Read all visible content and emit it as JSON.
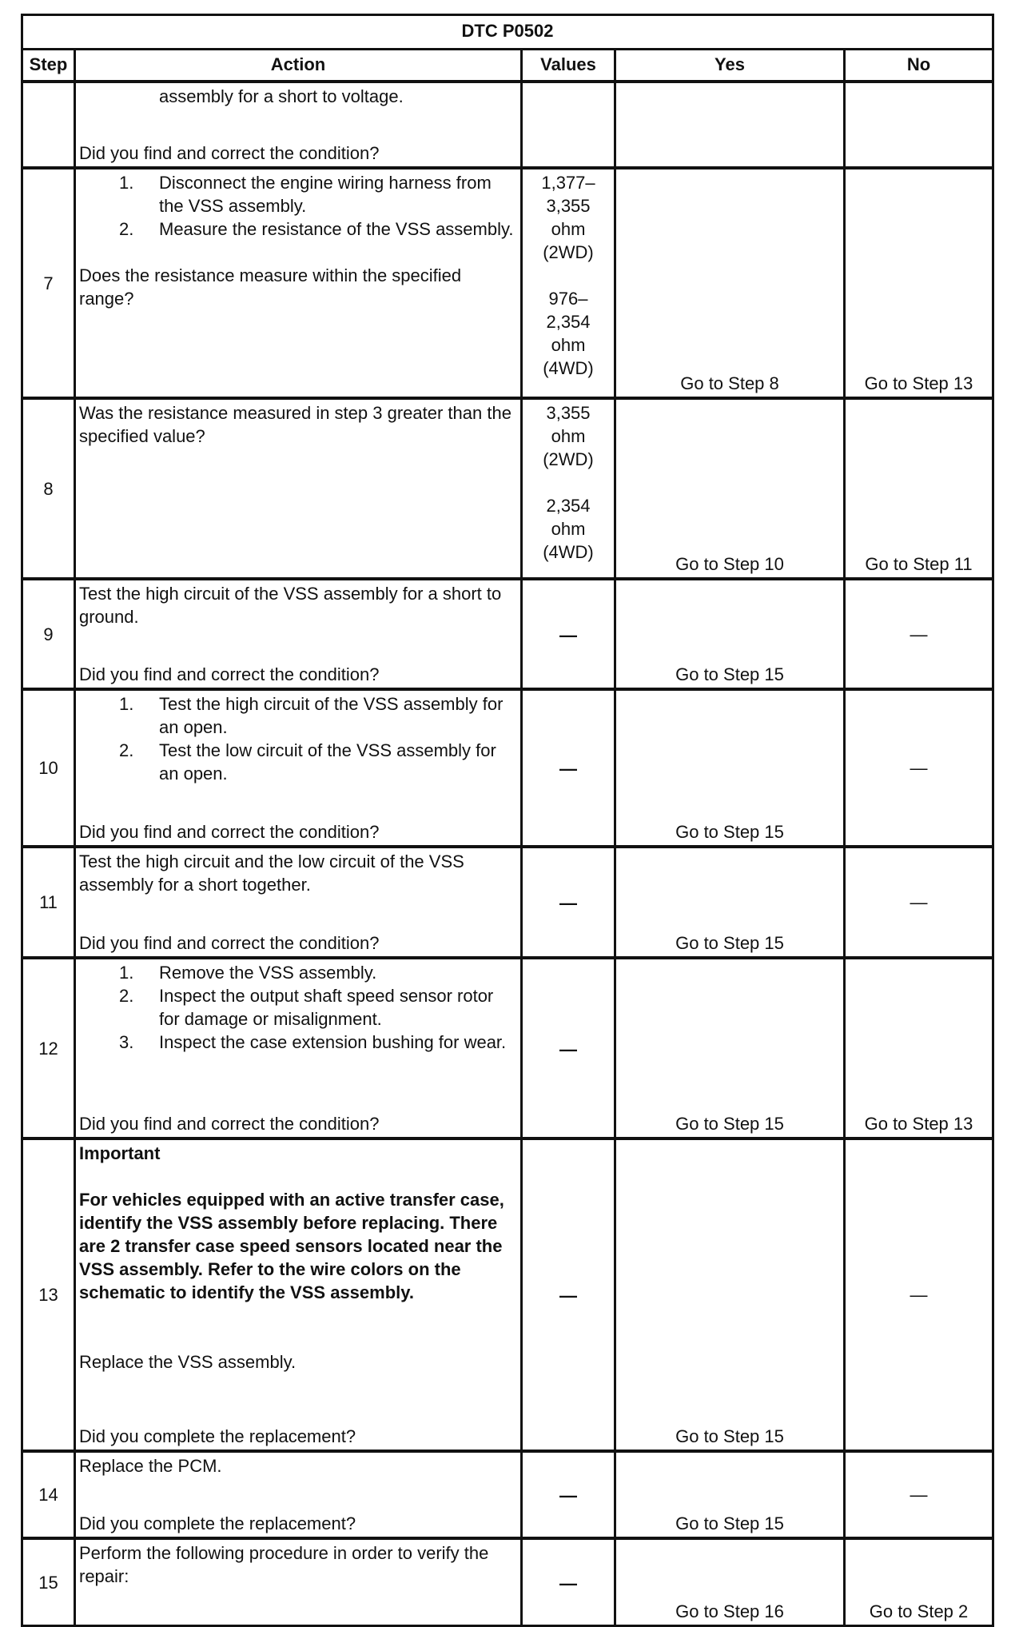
{
  "title": "DTC P0502",
  "headers": {
    "step": "Step",
    "action": "Action",
    "values": "Values",
    "yes": "Yes",
    "no": "No"
  },
  "rows": [
    {
      "step": "",
      "action": [
        {
          "t": "cont",
          "text": "assembly for a short to voltage."
        },
        {
          "t": "q",
          "text": "Did you find and correct the condition?"
        }
      ],
      "values": [],
      "dash": false,
      "yes": "",
      "no": ""
    },
    {
      "step": "7",
      "action": [
        {
          "t": "li",
          "n": "1.",
          "text": "Disconnect the engine wiring harness from the VSS assembly."
        },
        {
          "t": "li",
          "n": "2.",
          "text": "Measure the resistance of the VSS assembly."
        },
        {
          "t": "gap"
        },
        {
          "t": "p",
          "text": "Does the resistance measure within the specified range?"
        }
      ],
      "values": [
        "1,377–",
        "3,355",
        "ohm",
        "(2WD)",
        "",
        "976–",
        "2,354",
        "ohm",
        "(4WD)"
      ],
      "dash": false,
      "yes": "Go to Step 8",
      "no": "Go to Step 13"
    },
    {
      "step": "8",
      "action": [
        {
          "t": "p",
          "text": "Was the resistance measured in step 3 greater than the specified value?"
        }
      ],
      "values": [
        "3,355",
        "ohm",
        "(2WD)",
        "",
        "2,354",
        "ohm",
        "(4WD)"
      ],
      "dash": false,
      "yes": "Go to Step 10",
      "no": "Go to Step 11"
    },
    {
      "step": "9",
      "action": [
        {
          "t": "p",
          "text": "Test the high circuit of the VSS assembly for a short to ground."
        },
        {
          "t": "q",
          "text": "Did you find and correct the condition?"
        }
      ],
      "values": [
        "—"
      ],
      "dash": true,
      "yes": "Go to Step 15",
      "no": "—"
    },
    {
      "step": "10",
      "action": [
        {
          "t": "li",
          "n": "1.",
          "text": "Test the high circuit of the VSS assembly for an open."
        },
        {
          "t": "li",
          "n": "2.",
          "text": "Test the low circuit of the VSS assembly for an open."
        },
        {
          "t": "q",
          "text": "Did you find and correct the condition?"
        }
      ],
      "values": [
        "—"
      ],
      "dash": true,
      "yes": "Go to Step 15",
      "no": "—"
    },
    {
      "step": "11",
      "action": [
        {
          "t": "p",
          "text": "Test the high circuit and the low circuit of the VSS assembly for a short together."
        },
        {
          "t": "q",
          "text": "Did you find and correct the condition?"
        }
      ],
      "values": [
        "—"
      ],
      "dash": true,
      "yes": "Go to Step 15",
      "no": "—"
    },
    {
      "step": "12",
      "action": [
        {
          "t": "li",
          "n": "1.",
          "text": "Remove the VSS assembly."
        },
        {
          "t": "li",
          "n": "2.",
          "text": "Inspect the output shaft speed sensor rotor for damage or misalignment."
        },
        {
          "t": "li",
          "n": "3.",
          "text": "Inspect the case extension bushing for wear."
        },
        {
          "t": "q",
          "text": "Did you find and correct the condition?"
        }
      ],
      "values": [
        "—"
      ],
      "dash": true,
      "yes": "Go to Step 15",
      "no": "Go to Step 13"
    },
    {
      "step": "13",
      "action": [
        {
          "t": "b",
          "text": "Important"
        },
        {
          "t": "gap"
        },
        {
          "t": "b",
          "text": "For vehicles equipped with an active transfer case, identify the VSS assembly before replacing. There are 2 transfer case speed sensors located near the VSS assembly. Refer to the wire colors on the schematic to identify the VSS assembly."
        },
        {
          "t": "gap2"
        },
        {
          "t": "p",
          "text": "Replace the VSS assembly."
        },
        {
          "t": "q",
          "text": "Did you complete the replacement?"
        }
      ],
      "values": [
        "—"
      ],
      "dash": true,
      "yes": "Go to Step 15",
      "no": "—"
    },
    {
      "step": "14",
      "action": [
        {
          "t": "p",
          "text": "Replace the PCM."
        },
        {
          "t": "q",
          "text": "Did you complete the replacement?"
        }
      ],
      "values": [
        "—"
      ],
      "dash": true,
      "yes": "Go to Step 15",
      "no": "—"
    },
    {
      "step": "15",
      "action": [
        {
          "t": "p",
          "text": "Perform the following procedure in order to verify the repair:"
        }
      ],
      "values": [
        "—"
      ],
      "dash": true,
      "yes": "Go to Step 16",
      "no": "Go to Step 2"
    }
  ]
}
